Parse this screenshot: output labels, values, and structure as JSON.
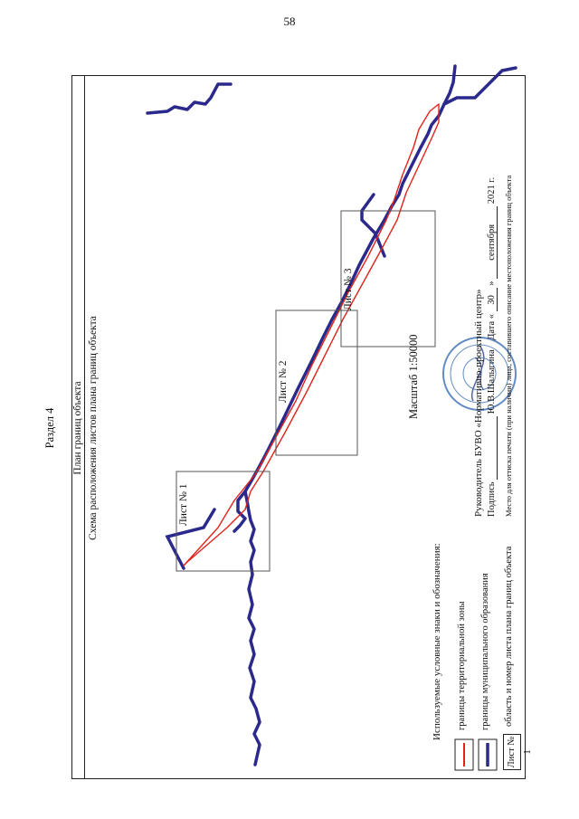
{
  "page_number": "58",
  "section": "Раздел 4",
  "plan_title": "План границ объекта",
  "scheme_title": "Схема расположения листов плана границ объекта",
  "sheets": [
    "Лист № 1",
    "Лист № 2",
    "Лист № 3"
  ],
  "scale": "Масштаб 1:50000",
  "legend": {
    "title": "Используемые условные знаки и обозначения:",
    "items": [
      {
        "label": "границы территориальной зоны",
        "color": "#e0241b"
      },
      {
        "label": "границы муниципального образования",
        "color": "#2b2a8c"
      },
      {
        "label": "область и номер листа плана границ объекта",
        "sample": "Лист № 1"
      }
    ]
  },
  "signature_block": {
    "head_text": "Руководитель БУВО «Нормативно-проектный центр»",
    "sign_label": "Подпись",
    "signer": "Ю.В.Шалыгина",
    "date_label": "Дата «",
    "date_day": "30",
    "date_sep": "»",
    "date_month": "сентября",
    "date_year": "2021 г.",
    "place_text": "Место для оттиска печати (при наличии) лица, составившего описание местоположения границ объекта"
  },
  "colors": {
    "zone_boundary": "#e0241b",
    "municipal_boundary": "#2b2a8c",
    "stamp": "#3d6fb5"
  }
}
